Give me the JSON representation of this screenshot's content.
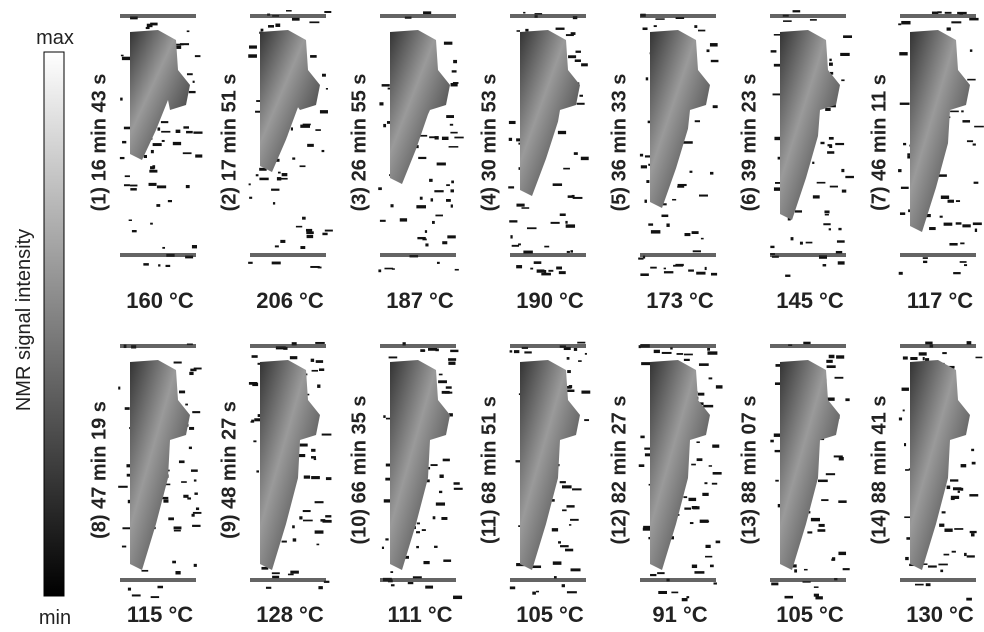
{
  "colorbar": {
    "title": "NMR signal intensity",
    "max_label": "max",
    "min_label": "min"
  },
  "panels": [
    {
      "label": "(1) 16 min 43 s",
      "temperature": "160 °C"
    },
    {
      "label": "(2) 17 min 51 s",
      "temperature": "206 °C"
    },
    {
      "label": "(3) 26 min 55 s",
      "temperature": "187 °C"
    },
    {
      "label": "(4) 30 min 53 s",
      "temperature": "190 °C"
    },
    {
      "label": "(5) 36 min 33 s",
      "temperature": "173 °C"
    },
    {
      "label": "(6) 39 min 23 s",
      "temperature": "145 °C"
    },
    {
      "label": "(7) 46 min 11 s",
      "temperature": "117 °C"
    },
    {
      "label": "(8) 47 min 19 s",
      "temperature": "115 °C"
    },
    {
      "label": "(9) 48 min 27 s",
      "temperature": "128 °C"
    },
    {
      "label": "(10) 66 min 35 s",
      "temperature": "111 °C"
    },
    {
      "label": "(11) 68 min 51 s",
      "temperature": "105 °C"
    },
    {
      "label": "(12) 82 min 27 s",
      "temperature": "91 °C"
    },
    {
      "label": "(13) 88 min 07 s",
      "temperature": "105 °C"
    },
    {
      "label": "(14) 88 min 41 s",
      "temperature": "130 °C"
    }
  ]
}
